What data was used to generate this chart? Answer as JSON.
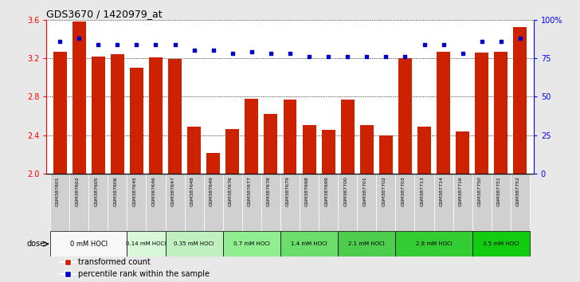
{
  "title": "GDS3670 / 1420979_at",
  "samples": [
    "GSM387601",
    "GSM387602",
    "GSM387605",
    "GSM387606",
    "GSM387645",
    "GSM387646",
    "GSM387647",
    "GSM387648",
    "GSM387649",
    "GSM387676",
    "GSM387677",
    "GSM387678",
    "GSM387679",
    "GSM387698",
    "GSM387699",
    "GSM387700",
    "GSM387701",
    "GSM387702",
    "GSM387703",
    "GSM387713",
    "GSM387714",
    "GSM387716",
    "GSM387750",
    "GSM387751",
    "GSM387752"
  ],
  "bar_values": [
    3.27,
    3.58,
    3.22,
    3.24,
    3.1,
    3.21,
    3.19,
    2.49,
    2.21,
    2.46,
    2.78,
    2.62,
    2.77,
    2.5,
    2.45,
    2.77,
    2.5,
    2.4,
    3.2,
    2.49,
    3.27,
    2.44,
    3.26,
    3.27,
    3.52
  ],
  "percentile_values": [
    86,
    88,
    84,
    84,
    84,
    84,
    84,
    80,
    80,
    78,
    79,
    78,
    78,
    76,
    76,
    76,
    76,
    76,
    76,
    84,
    84,
    78,
    86,
    86,
    88
  ],
  "dose_groups_data": [
    {
      "label": "0 mM HOCl",
      "start": 0,
      "end": 3,
      "color": "#f8f8f8"
    },
    {
      "label": "0.14 mM HOCl",
      "start": 4,
      "end": 5,
      "color": "#d8f8d8"
    },
    {
      "label": "0.35 mM HOCl",
      "start": 6,
      "end": 8,
      "color": "#c0f0c0"
    },
    {
      "label": "0.7 mM HOCl",
      "start": 9,
      "end": 11,
      "color": "#90ee90"
    },
    {
      "label": "1.4 mM HOCl",
      "start": 12,
      "end": 14,
      "color": "#6add6a"
    },
    {
      "label": "2.1 mM HOCl",
      "start": 15,
      "end": 17,
      "color": "#4dcc4d"
    },
    {
      "label": "2.8 mM HOCl",
      "start": 18,
      "end": 21,
      "color": "#33cc33"
    },
    {
      "label": "3.5 mM HOCl",
      "start": 22,
      "end": 24,
      "color": "#11cc11"
    }
  ],
  "bar_color": "#cc2200",
  "dot_color": "#0000cc",
  "ylim_left": [
    2.0,
    3.6
  ],
  "ylim_right": [
    0,
    100
  ],
  "yticks_left": [
    2.0,
    2.4,
    2.8,
    3.2,
    3.6
  ],
  "yticks_right": [
    0,
    25,
    50,
    75,
    100
  ],
  "ytick_labels_right": [
    "0",
    "25",
    "50",
    "75",
    "100%"
  ],
  "bg_color": "#e8e8e8",
  "plot_bg": "#ffffff",
  "sample_label_bg": "#d0d0d0"
}
